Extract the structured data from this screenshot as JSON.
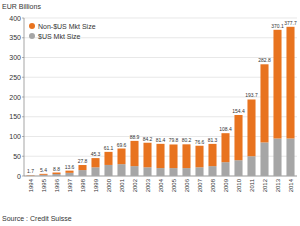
{
  "chart_data": {
    "type": "bar",
    "stacked": true,
    "y_label": "EUR Billions",
    "source": "Source : Credit Suisse",
    "categories": [
      "1994",
      "1995",
      "1996",
      "1997",
      "1998",
      "1999",
      "2000",
      "2001",
      "2002",
      "2003",
      "2004",
      "2005",
      "2006",
      "2007",
      "2008",
      "2009",
      "2010",
      "2011",
      "2012",
      "2013",
      "2014"
    ],
    "series": [
      {
        "name": "$US Mkt Size",
        "color": "#a6a6a6",
        "values": [
          1,
          3,
          5,
          8,
          15,
          22,
          28,
          30,
          25,
          22,
          20,
          20,
          20,
          22,
          25,
          35,
          40,
          50,
          85,
          95,
          95
        ]
      },
      {
        "name": "Non-$US Mkt Size",
        "color": "#e8731f",
        "values": [
          0.7,
          2.4,
          3.8,
          5.6,
          12.8,
          23.3,
          33.1,
          39.6,
          63.9,
          62.2,
          61.4,
          59.8,
          60.2,
          54.6,
          56.3,
          73.4,
          114.4,
          143.7,
          197.8,
          275.1,
          282.7
        ]
      }
    ],
    "totals": [
      1.7,
      5.4,
      8.8,
      13.6,
      27.8,
      45.3,
      61.1,
      69.6,
      88.9,
      84.2,
      81.4,
      79.8,
      80.2,
      76.6,
      81.3,
      108.4,
      154.4,
      193.7,
      282.8,
      370.1,
      377.7
    ],
    "data_labels": true,
    "ylim": [
      0,
      400
    ],
    "yticks": [
      0,
      50,
      100,
      150,
      200,
      250,
      300,
      350,
      400
    ],
    "grid": true,
    "legend": "upper left"
  }
}
